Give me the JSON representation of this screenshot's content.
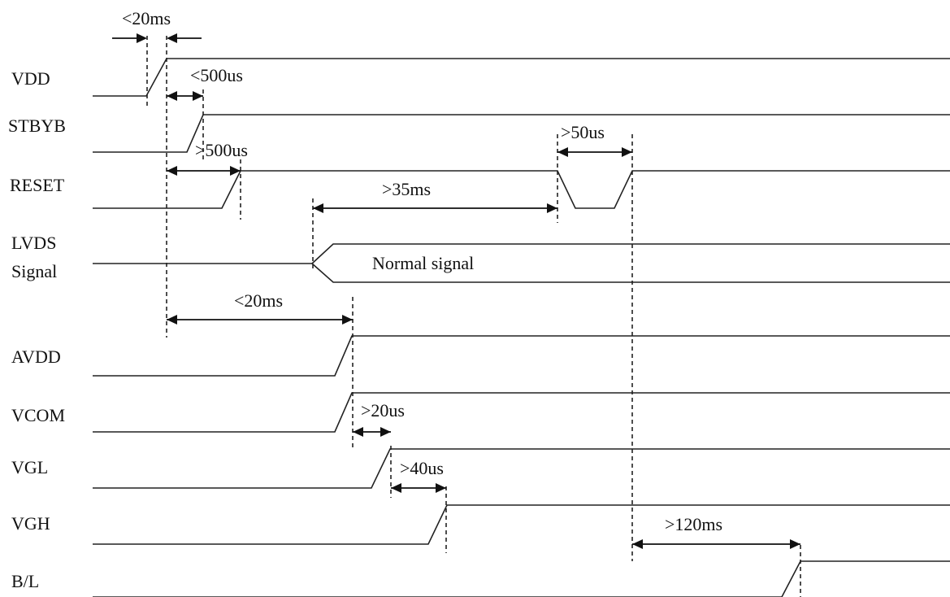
{
  "signals": {
    "vdd": "VDD",
    "stbyb": "STBYB",
    "reset": "RESET",
    "lvds_line1": "LVDS",
    "lvds_line2": "Signal",
    "avdd": "AVDD",
    "vcom": "VCOM",
    "vgl": "VGL",
    "vgh": "VGH",
    "bl": "B/L"
  },
  "lvds_state": "Normal signal",
  "timings": {
    "vdd_rise": "<20ms",
    "vdd_to_stbyb": "<500us",
    "vdd_to_reset": ">500us",
    "reset_pulse": ">50us",
    "lvds_to_reset_pulse": ">35ms",
    "vdd_to_avdd": "<20ms",
    "vcom_to_vgl": ">20us",
    "vgl_to_vgh": ">40us",
    "reset_to_backlight": ">120ms"
  }
}
